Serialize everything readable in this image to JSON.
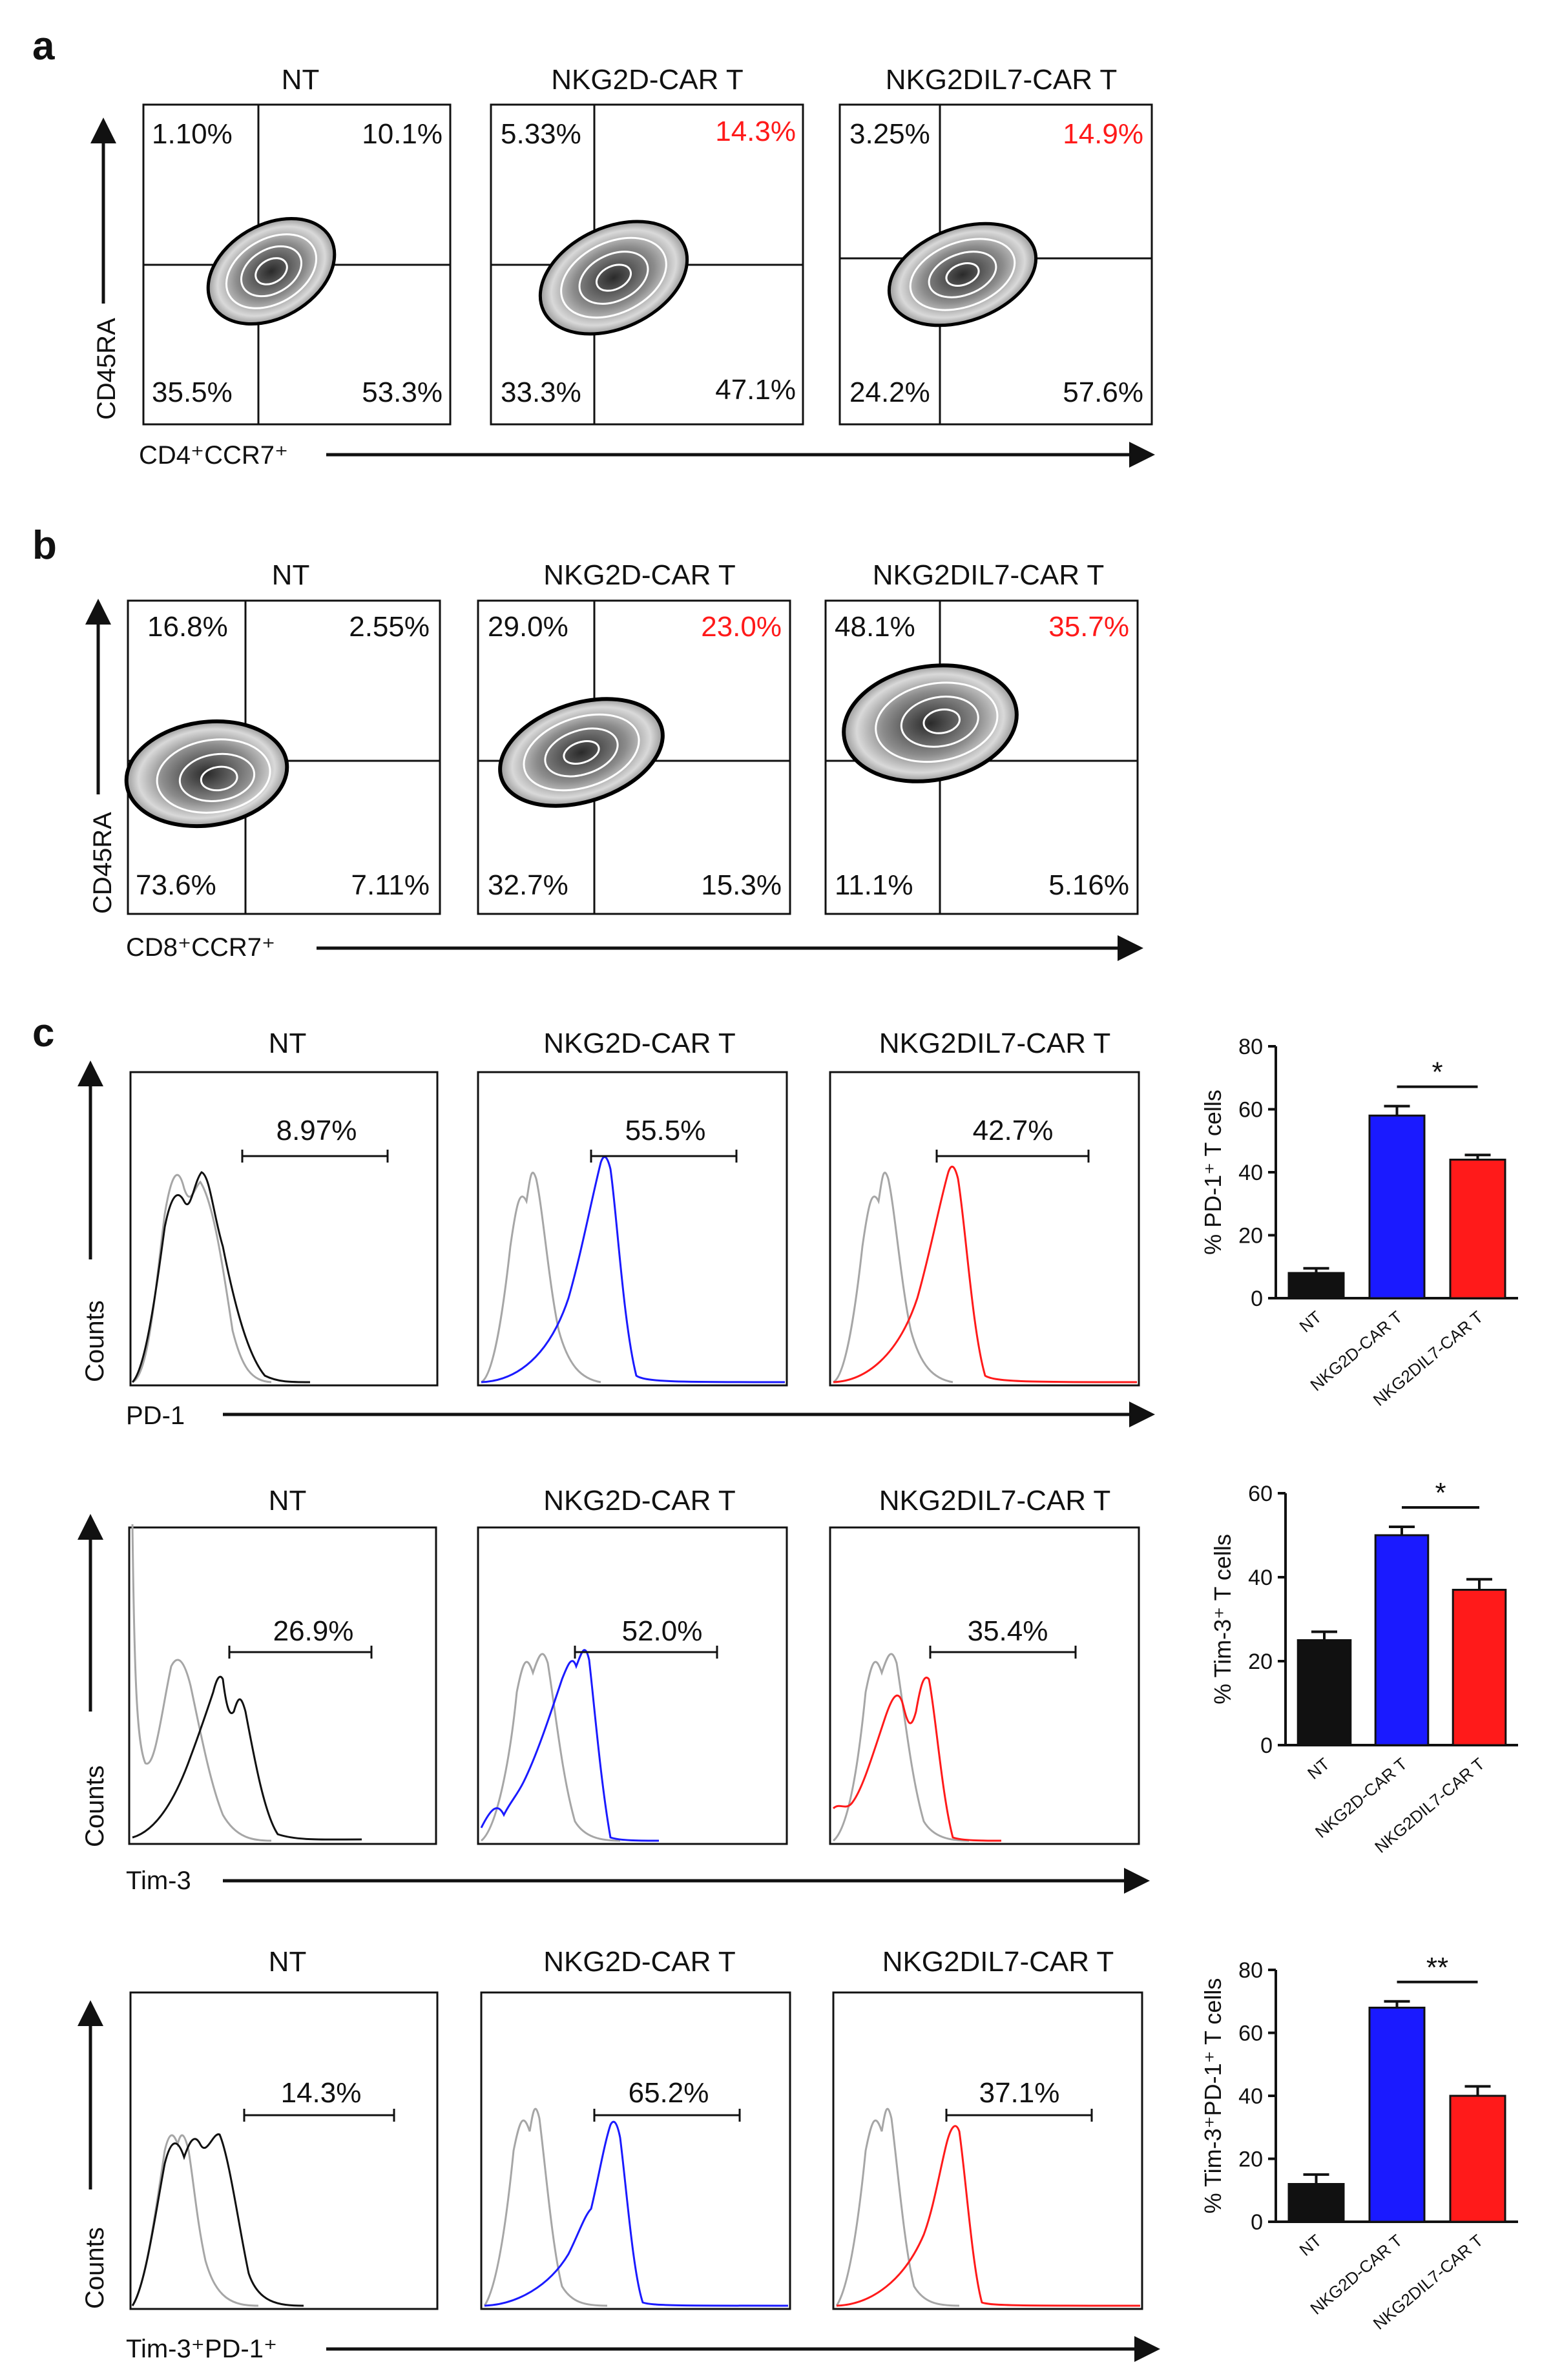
{
  "colors": {
    "nt": "#111111",
    "car": "#1a1aff",
    "il7": "#ff1a1a",
    "control": "#a6a6a6",
    "highlight": "#ff1a1a",
    "text": "#111111"
  },
  "panel_a": {
    "label": "a",
    "y_axis_label": "CD45RA",
    "x_axis_label": "CD4⁺CCR7⁺",
    "plots": [
      {
        "title": "NT",
        "q_ul": "1.10%",
        "q_ur": "10.1%",
        "q_ll": "35.5%",
        "q_lr": "53.3%",
        "ur_highlight": false
      },
      {
        "title": "NKG2D-CAR T",
        "q_ul": "5.33%",
        "q_ur": "14.3%",
        "q_ll": "33.3%",
        "q_lr": "47.1%",
        "ur_highlight": true
      },
      {
        "title": "NKG2DIL7-CAR T",
        "q_ul": "3.25%",
        "q_ur": "14.9%",
        "q_ll": "24.2%",
        "q_lr": "57.6%",
        "ur_highlight": true
      }
    ]
  },
  "panel_b": {
    "label": "b",
    "y_axis_label": "CD45RA",
    "x_axis_label": "CD8⁺CCR7⁺",
    "plots": [
      {
        "title": "NT",
        "q_ul": "16.8%",
        "q_ur": "2.55%",
        "q_ll": "73.6%",
        "q_lr": "7.11%",
        "ur_highlight": false
      },
      {
        "title": "NKG2D-CAR T",
        "q_ul": "29.0%",
        "q_ur": "23.0%",
        "q_ll": "32.7%",
        "q_lr": "15.3%",
        "ur_highlight": true
      },
      {
        "title": "NKG2DIL7-CAR T",
        "q_ul": "48.1%",
        "q_ur": "35.7%",
        "q_ll": "11.1%",
        "q_lr": "5.16%",
        "ur_highlight": true
      }
    ]
  },
  "panel_c": {
    "label": "c",
    "rows": [
      {
        "y_axis_label": "Counts",
        "x_axis_label": "PD-1",
        "titles": [
          "NT",
          "NKG2D-CAR T",
          "NKG2DIL7-CAR T"
        ],
        "gates": [
          "8.97%",
          "55.5%",
          "42.7%"
        ]
      },
      {
        "y_axis_label": "Counts",
        "x_axis_label": "Tim-3",
        "titles": [
          "NT",
          "NKG2D-CAR T",
          "NKG2DIL7-CAR T"
        ],
        "gates": [
          "26.9%",
          "52.0%",
          "35.4%"
        ]
      },
      {
        "y_axis_label": "Counts",
        "x_axis_label": "Tim-3⁺PD-1⁺",
        "titles": [
          "NT",
          "NKG2D-CAR T",
          "NKG2DIL7-CAR T"
        ],
        "gates": [
          "14.3%",
          "65.2%",
          "37.1%"
        ]
      }
    ]
  },
  "chart_data": [
    {
      "type": "bar",
      "title": "",
      "ylabel": "% PD-1⁺ T cells",
      "xlabel": "",
      "categories": [
        "NT",
        "NKG2D-CAR T",
        "NKG2DIL7-CAR T"
      ],
      "values": [
        8,
        58,
        44
      ],
      "errors": [
        1.5,
        3,
        1.5
      ],
      "ylim": [
        0,
        80
      ],
      "yticks": [
        0,
        20,
        40,
        60,
        80
      ],
      "significance": {
        "between": [
          1,
          2
        ],
        "label": "*"
      }
    },
    {
      "type": "bar",
      "title": "",
      "ylabel": "% Tim-3⁺ T cells",
      "xlabel": "",
      "categories": [
        "NT",
        "NKG2D-CAR T",
        "NKG2DIL7-CAR T"
      ],
      "values": [
        25,
        50,
        37
      ],
      "errors": [
        2,
        2,
        2.5
      ],
      "ylim": [
        0,
        60
      ],
      "yticks": [
        0,
        20,
        40,
        60
      ],
      "significance": {
        "between": [
          1,
          2
        ],
        "label": "*"
      }
    },
    {
      "type": "bar",
      "title": "",
      "ylabel": "% Tim-3⁺PD-1⁺ T cells",
      "xlabel": "",
      "categories": [
        "NT",
        "NKG2D-CAR T",
        "NKG2DIL7-CAR T"
      ],
      "values": [
        12,
        68,
        40
      ],
      "errors": [
        3,
        2,
        3
      ],
      "ylim": [
        0,
        80
      ],
      "yticks": [
        0,
        20,
        40,
        60,
        80
      ],
      "significance": {
        "between": [
          1,
          2
        ],
        "label": "**"
      }
    }
  ]
}
